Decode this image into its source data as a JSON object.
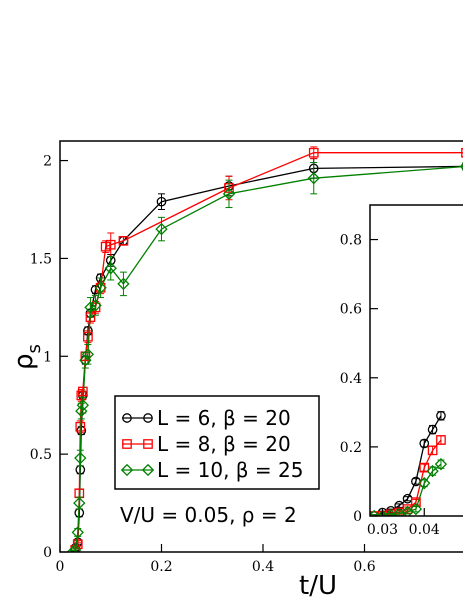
{
  "chart_data": [
    {
      "type": "line",
      "role": "main",
      "xlabel": "t/U",
      "ylabel": "ρ",
      "ylabel_sub": "s",
      "xlim": [
        0,
        0.8
      ],
      "ylim": [
        0,
        2.1
      ],
      "xticks": [
        0,
        0.2,
        0.4,
        0.6
      ],
      "xtick_labels": [
        "0",
        "0.2",
        "0.4",
        "0.6"
      ],
      "yticks": [
        0,
        0.5,
        1,
        1.5,
        2
      ],
      "ytick_labels": [
        "0",
        "0.5",
        "1",
        "1.5",
        "2"
      ],
      "grid": false,
      "legend_position": "lower-left",
      "annotation": "V/U = 0.05, ρ = 2",
      "series": [
        {
          "name": "L = 6, β = 20",
          "color": "#000000",
          "marker": "circle",
          "x": [
            0.03,
            0.035,
            0.038,
            0.04,
            0.042,
            0.045,
            0.05,
            0.055,
            0.06,
            0.07,
            0.08,
            0.1,
            0.125,
            0.2,
            0.333,
            0.5,
            0.8
          ],
          "y": [
            0.02,
            0.05,
            0.2,
            0.42,
            0.62,
            0.8,
            0.98,
            1.13,
            1.22,
            1.34,
            1.4,
            1.49,
            1.59,
            1.79,
            1.87,
            1.96,
            1.97
          ],
          "err": [
            0.01,
            0.01,
            0.02,
            0.02,
            0.02,
            0.02,
            0.02,
            0.02,
            0.02,
            0.02,
            0.02,
            0.03,
            0.02,
            0.04,
            0.05,
            0.05,
            0.02
          ]
        },
        {
          "name": "L = 8, β = 20",
          "color": "#ff0000",
          "marker": "square",
          "x": [
            0.03,
            0.035,
            0.038,
            0.04,
            0.042,
            0.045,
            0.05,
            0.055,
            0.06,
            0.07,
            0.08,
            0.09,
            0.1,
            0.125,
            0.333,
            0.5,
            0.8
          ],
          "y": [
            0.01,
            0.04,
            0.3,
            0.64,
            0.8,
            0.82,
            1.0,
            1.1,
            1.2,
            1.25,
            1.35,
            1.56,
            1.57,
            1.59,
            1.86,
            2.04,
            2.04
          ],
          "err": [
            0.01,
            0.01,
            0.02,
            0.03,
            0.03,
            0.02,
            0.02,
            0.03,
            0.03,
            0.03,
            0.03,
            0.03,
            0.06,
            0.02,
            0.06,
            0.03,
            0.02
          ]
        },
        {
          "name": "L = 10, β = 25",
          "color": "#008000",
          "marker": "diamond",
          "x": [
            0.025,
            0.03,
            0.035,
            0.038,
            0.04,
            0.042,
            0.045,
            0.05,
            0.055,
            0.06,
            0.07,
            0.08,
            0.1,
            0.125,
            0.2,
            0.333,
            0.5,
            0.8
          ],
          "y": [
            0.0,
            0.01,
            0.1,
            0.25,
            0.48,
            0.72,
            0.75,
            0.98,
            1.01,
            1.25,
            1.26,
            1.35,
            1.45,
            1.37,
            1.65,
            1.83,
            1.91,
            1.97
          ],
          "err": [
            0.01,
            0.01,
            0.02,
            0.03,
            0.04,
            0.04,
            0.04,
            0.04,
            0.05,
            0.05,
            0.05,
            0.05,
            0.06,
            0.06,
            0.06,
            0.07,
            0.08,
            0.02
          ]
        }
      ]
    },
    {
      "type": "line",
      "role": "inset",
      "xlim": [
        0.027,
        0.05
      ],
      "ylim": [
        0,
        0.9
      ],
      "xticks": [
        0.03,
        0.04
      ],
      "xtick_labels": [
        "0.03",
        "0.04"
      ],
      "yticks": [
        0,
        0.2,
        0.4,
        0.6,
        0.8
      ],
      "ytick_labels": [
        "0",
        "0.2",
        "0.4",
        "0.6",
        "0.8"
      ],
      "grid": false,
      "series": [
        {
          "name": "L = 6, β = 20",
          "color": "#000000",
          "marker": "circle",
          "x": [
            0.028,
            0.03,
            0.032,
            0.034,
            0.036,
            0.038,
            0.04,
            0.042,
            0.044
          ],
          "y": [
            0.0,
            0.01,
            0.015,
            0.03,
            0.05,
            0.1,
            0.21,
            0.25,
            0.29
          ],
          "err": [
            0.004,
            0.004,
            0.005,
            0.005,
            0.006,
            0.008,
            0.01,
            0.012,
            0.012
          ]
        },
        {
          "name": "L = 8, β = 20",
          "color": "#ff0000",
          "marker": "square",
          "x": [
            0.028,
            0.03,
            0.032,
            0.034,
            0.036,
            0.038,
            0.04,
            0.042,
            0.044
          ],
          "y": [
            0.0,
            0.0,
            0.005,
            0.01,
            0.02,
            0.04,
            0.14,
            0.19,
            0.22
          ],
          "err": [
            0.004,
            0.004,
            0.004,
            0.005,
            0.006,
            0.008,
            0.01,
            0.012,
            0.012
          ]
        },
        {
          "name": "L = 10, β = 25",
          "color": "#008000",
          "marker": "diamond",
          "x": [
            0.028,
            0.03,
            0.032,
            0.034,
            0.036,
            0.038,
            0.04,
            0.042,
            0.044
          ],
          "y": [
            0.0,
            0.0,
            0.003,
            0.006,
            0.012,
            0.02,
            0.095,
            0.13,
            0.15
          ],
          "err": [
            0.004,
            0.004,
            0.004,
            0.005,
            0.006,
            0.008,
            0.01,
            0.012,
            0.012
          ]
        }
      ]
    }
  ]
}
